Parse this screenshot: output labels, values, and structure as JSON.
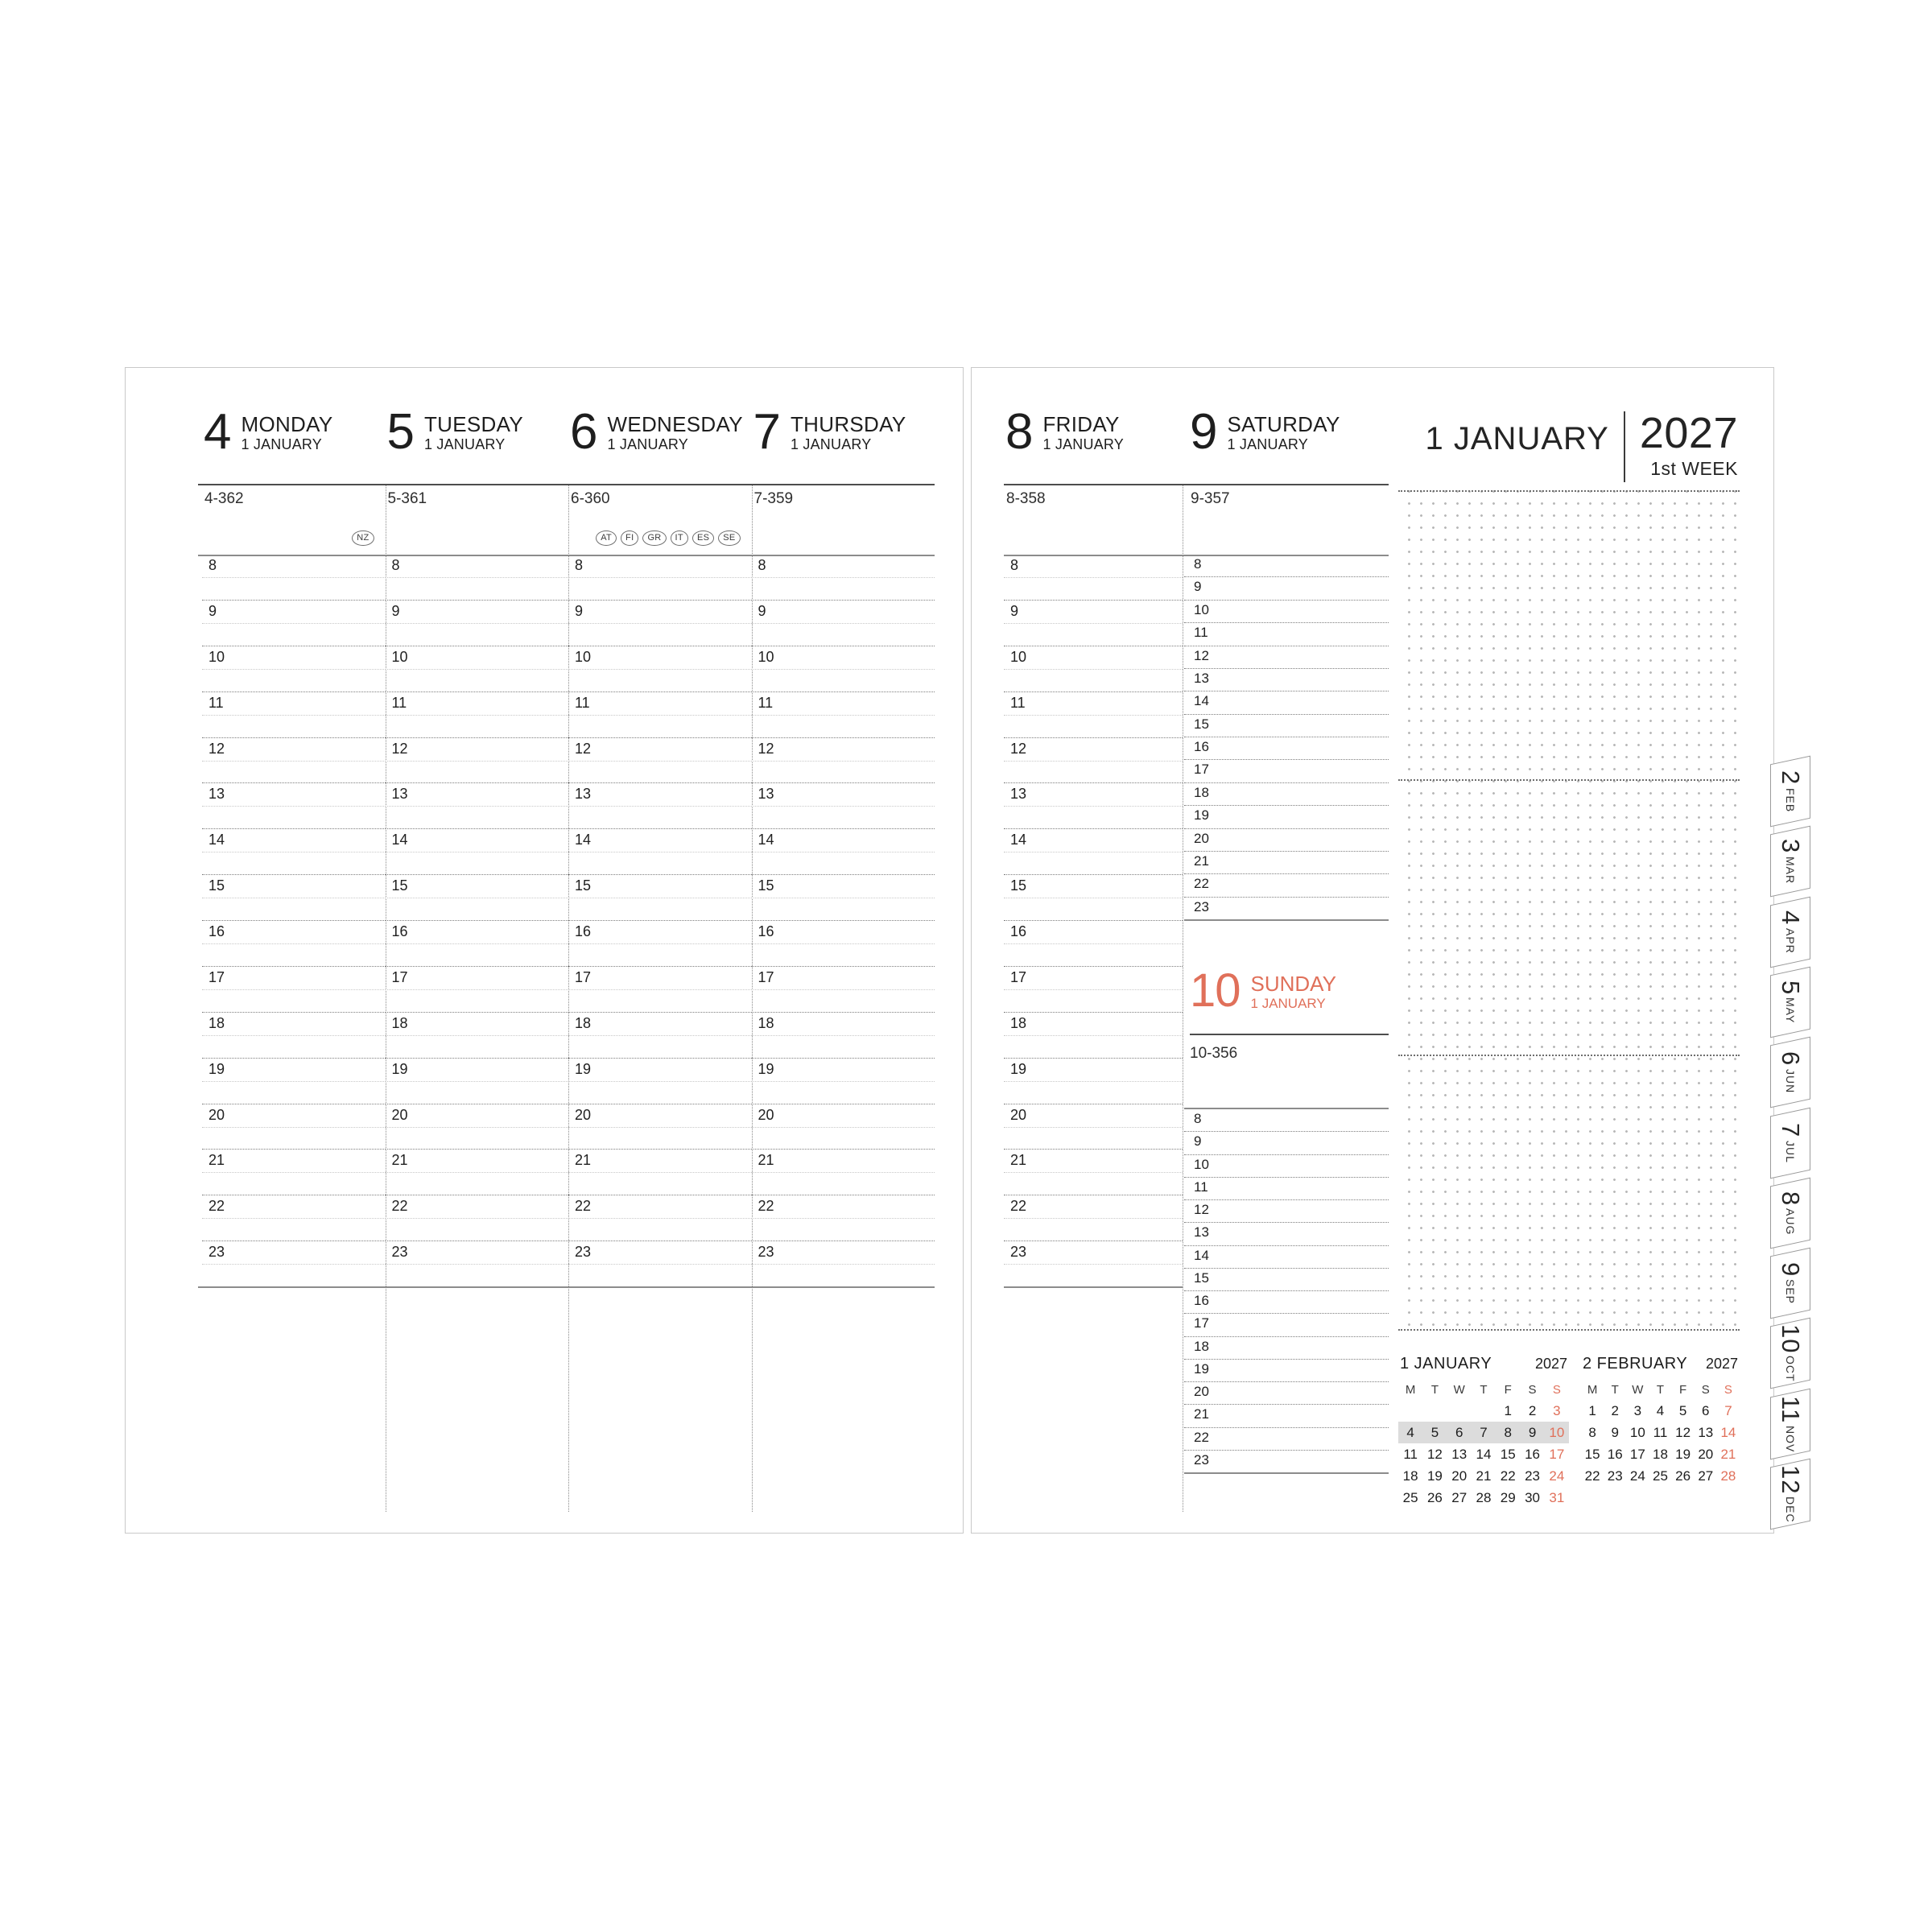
{
  "title": {
    "month": "1 JANUARY",
    "year": "2027",
    "week": "1st WEEK"
  },
  "hours": [
    "8",
    "9",
    "10",
    "11",
    "12",
    "13",
    "14",
    "15",
    "16",
    "17",
    "18",
    "19",
    "20",
    "21",
    "22",
    "23"
  ],
  "days": {
    "monday": {
      "num": "4",
      "name": "MONDAY",
      "month": "1 JANUARY",
      "code": "4-362",
      "holidays": [
        "NZ"
      ]
    },
    "tuesday": {
      "num": "5",
      "name": "TUESDAY",
      "month": "1 JANUARY",
      "code": "5-361",
      "holidays": []
    },
    "wednesday": {
      "num": "6",
      "name": "WEDNESDAY",
      "month": "1 JANUARY",
      "code": "6-360",
      "holidays": [
        "AT",
        "FI",
        "GR",
        "IT",
        "ES",
        "SE"
      ]
    },
    "thursday": {
      "num": "7",
      "name": "THURSDAY",
      "month": "1 JANUARY",
      "code": "7-359",
      "holidays": []
    },
    "friday": {
      "num": "8",
      "name": "FRIDAY",
      "month": "1 JANUARY",
      "code": "8-358",
      "holidays": []
    },
    "saturday": {
      "num": "9",
      "name": "SATURDAY",
      "month": "1 JANUARY",
      "code": "9-357",
      "holidays": []
    },
    "sunday": {
      "num": "10",
      "name": "SUNDAY",
      "month": "1 JANUARY",
      "code": "10-356",
      "holidays": []
    }
  },
  "tabs": [
    {
      "num": "2",
      "month": "FEB"
    },
    {
      "num": "3",
      "month": "MAR"
    },
    {
      "num": "4",
      "month": "APR"
    },
    {
      "num": "5",
      "month": "MAY"
    },
    {
      "num": "6",
      "month": "JUN"
    },
    {
      "num": "7",
      "month": "JUL"
    },
    {
      "num": "8",
      "month": "AUG"
    },
    {
      "num": "9",
      "month": "SEP"
    },
    {
      "num": "10",
      "month": "OCT"
    },
    {
      "num": "11",
      "month": "NOV"
    },
    {
      "num": "12",
      "month": "DEC"
    }
  ],
  "mini_calendars": [
    {
      "title": "1 JANUARY",
      "year": "2027",
      "weekdays": [
        "M",
        "T",
        "W",
        "T",
        "F",
        "S",
        "S"
      ],
      "rows": [
        [
          "",
          "",
          "",
          "",
          "1",
          "2",
          "3"
        ],
        [
          "4",
          "5",
          "6",
          "7",
          "8",
          "9",
          "10"
        ],
        [
          "11",
          "12",
          "13",
          "14",
          "15",
          "16",
          "17"
        ],
        [
          "18",
          "19",
          "20",
          "21",
          "22",
          "23",
          "24"
        ],
        [
          "25",
          "26",
          "27",
          "28",
          "29",
          "30",
          "31"
        ]
      ],
      "highlight_row": 1
    },
    {
      "title": "2 FEBRUARY",
      "year": "2027",
      "weekdays": [
        "M",
        "T",
        "W",
        "T",
        "F",
        "S",
        "S"
      ],
      "rows": [
        [
          "1",
          "2",
          "3",
          "4",
          "5",
          "6",
          "7"
        ],
        [
          "8",
          "9",
          "10",
          "11",
          "12",
          "13",
          "14"
        ],
        [
          "15",
          "16",
          "17",
          "18",
          "19",
          "20",
          "21"
        ],
        [
          "22",
          "23",
          "24",
          "25",
          "26",
          "27",
          "28"
        ]
      ],
      "highlight_row": -1
    }
  ],
  "colors": {
    "accent": "#e0705a",
    "highlight": "#dcdcdc"
  }
}
